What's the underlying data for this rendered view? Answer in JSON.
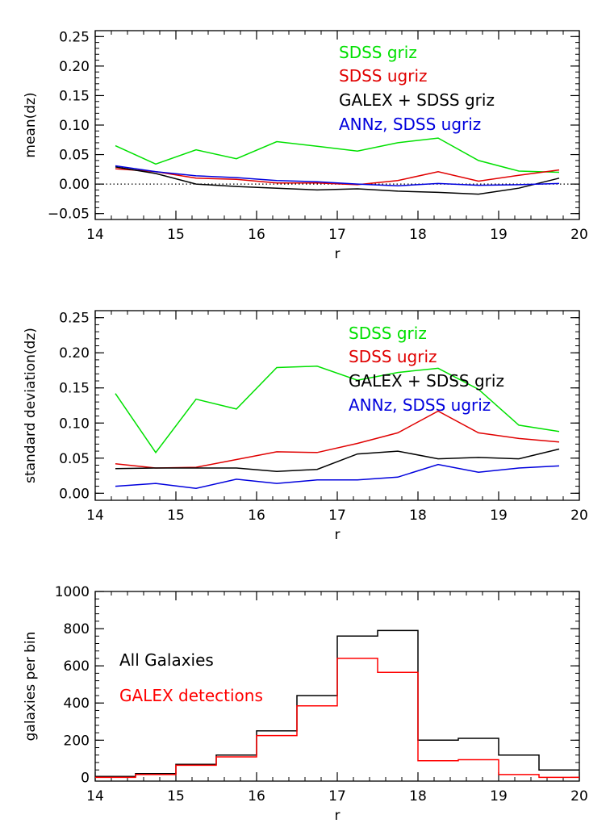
{
  "chart_data": [
    {
      "type": "line",
      "xlabel": "r",
      "ylabel": "mean(dz)",
      "xlim": [
        14,
        20
      ],
      "ylim": [
        -0.06,
        0.26
      ],
      "xticks": [
        "14",
        "15",
        "16",
        "17",
        "18",
        "19",
        "20"
      ],
      "yticks": [
        "−0.05",
        "0.00",
        "0.05",
        "0.10",
        "0.15",
        "0.20",
        "0.25"
      ],
      "yticks_values": [
        -0.05,
        0,
        0.05,
        0.1,
        0.15,
        0.2,
        0.25
      ],
      "reference_line": 0,
      "legend_placement": "upper-right",
      "x": [
        14.25,
        14.75,
        15.25,
        15.75,
        16.25,
        16.75,
        17.25,
        17.75,
        18.25,
        18.75,
        19.25,
        19.75
      ],
      "series": [
        {
          "name": "SDSS griz",
          "color": "#00e000",
          "values": [
            0.065,
            0.034,
            0.058,
            0.043,
            0.072,
            0.064,
            0.056,
            0.07,
            0.078,
            0.04,
            0.022,
            0.02
          ]
        },
        {
          "name": "SDSS ugriz",
          "color": "#e00000",
          "values": [
            0.026,
            0.021,
            0.01,
            0.008,
            0.002,
            0.002,
            -0.001,
            0.006,
            0.021,
            0.005,
            0.015,
            0.024
          ]
        },
        {
          "name": "GALEX + SDSS griz",
          "color": "#000000",
          "values": [
            0.029,
            0.018,
            0.0,
            -0.004,
            -0.007,
            -0.01,
            -0.008,
            -0.012,
            -0.014,
            -0.017,
            -0.007,
            0.01
          ]
        },
        {
          "name": "ANNz, SDSS ugriz",
          "color": "#0000dd",
          "values": [
            0.031,
            0.021,
            0.014,
            0.011,
            0.006,
            0.004,
            0.0,
            -0.003,
            0.001,
            -0.002,
            -0.001,
            0.001
          ]
        }
      ]
    },
    {
      "type": "line",
      "xlabel": "r",
      "ylabel": "standard deviation(dz)",
      "xlim": [
        14,
        20
      ],
      "ylim": [
        -0.01,
        0.26
      ],
      "xticks": [
        "14",
        "15",
        "16",
        "17",
        "18",
        "19",
        "20"
      ],
      "yticks": [
        "0.00",
        "0.05",
        "0.10",
        "0.15",
        "0.20",
        "0.25"
      ],
      "yticks_values": [
        0,
        0.05,
        0.1,
        0.15,
        0.2,
        0.25
      ],
      "legend_placement": "upper-right",
      "x": [
        14.25,
        14.75,
        15.25,
        15.75,
        16.25,
        16.75,
        17.25,
        17.75,
        18.25,
        18.75,
        19.25,
        19.75
      ],
      "series": [
        {
          "name": "SDSS griz",
          "color": "#00e000",
          "values": [
            0.142,
            0.058,
            0.134,
            0.12,
            0.179,
            0.181,
            0.161,
            0.172,
            0.178,
            0.148,
            0.097,
            0.088
          ]
        },
        {
          "name": "SDSS ugriz",
          "color": "#e00000",
          "values": [
            0.042,
            0.036,
            0.037,
            0.048,
            0.059,
            0.058,
            0.071,
            0.086,
            0.117,
            0.086,
            0.078,
            0.073
          ]
        },
        {
          "name": "GALEX + SDSS griz",
          "color": "#000000",
          "values": [
            0.035,
            0.036,
            0.036,
            0.036,
            0.031,
            0.034,
            0.056,
            0.06,
            0.049,
            0.051,
            0.049,
            0.063
          ]
        },
        {
          "name": "ANNz, SDSS ugriz",
          "color": "#0000dd",
          "values": [
            0.01,
            0.014,
            0.007,
            0.02,
            0.014,
            0.019,
            0.019,
            0.023,
            0.041,
            0.03,
            0.036,
            0.039
          ]
        }
      ]
    },
    {
      "type": "histogram",
      "xlabel": "r",
      "ylabel": "galaxies per bin",
      "xlim": [
        14,
        20
      ],
      "ylim": [
        -20,
        1000
      ],
      "xticks": [
        "14",
        "15",
        "16",
        "17",
        "18",
        "19",
        "20"
      ],
      "yticks": [
        "0",
        "200",
        "400",
        "600",
        "800",
        "1000"
      ],
      "yticks_values": [
        0,
        200,
        400,
        600,
        800,
        1000
      ],
      "legend_placement": "left",
      "bin_edges": [
        14,
        14.5,
        15,
        15.5,
        16,
        16.5,
        17,
        17.5,
        18,
        18.5,
        19,
        19.5,
        20
      ],
      "series": [
        {
          "name": "All Galaxies",
          "color": "#000000",
          "values": [
            5,
            20,
            70,
            120,
            250,
            440,
            760,
            790,
            200,
            210,
            120,
            40
          ]
        },
        {
          "name": "GALEX detections",
          "color": "#ff0000",
          "values": [
            0,
            15,
            65,
            110,
            225,
            385,
            640,
            565,
            90,
            95,
            15,
            0
          ]
        }
      ]
    }
  ]
}
